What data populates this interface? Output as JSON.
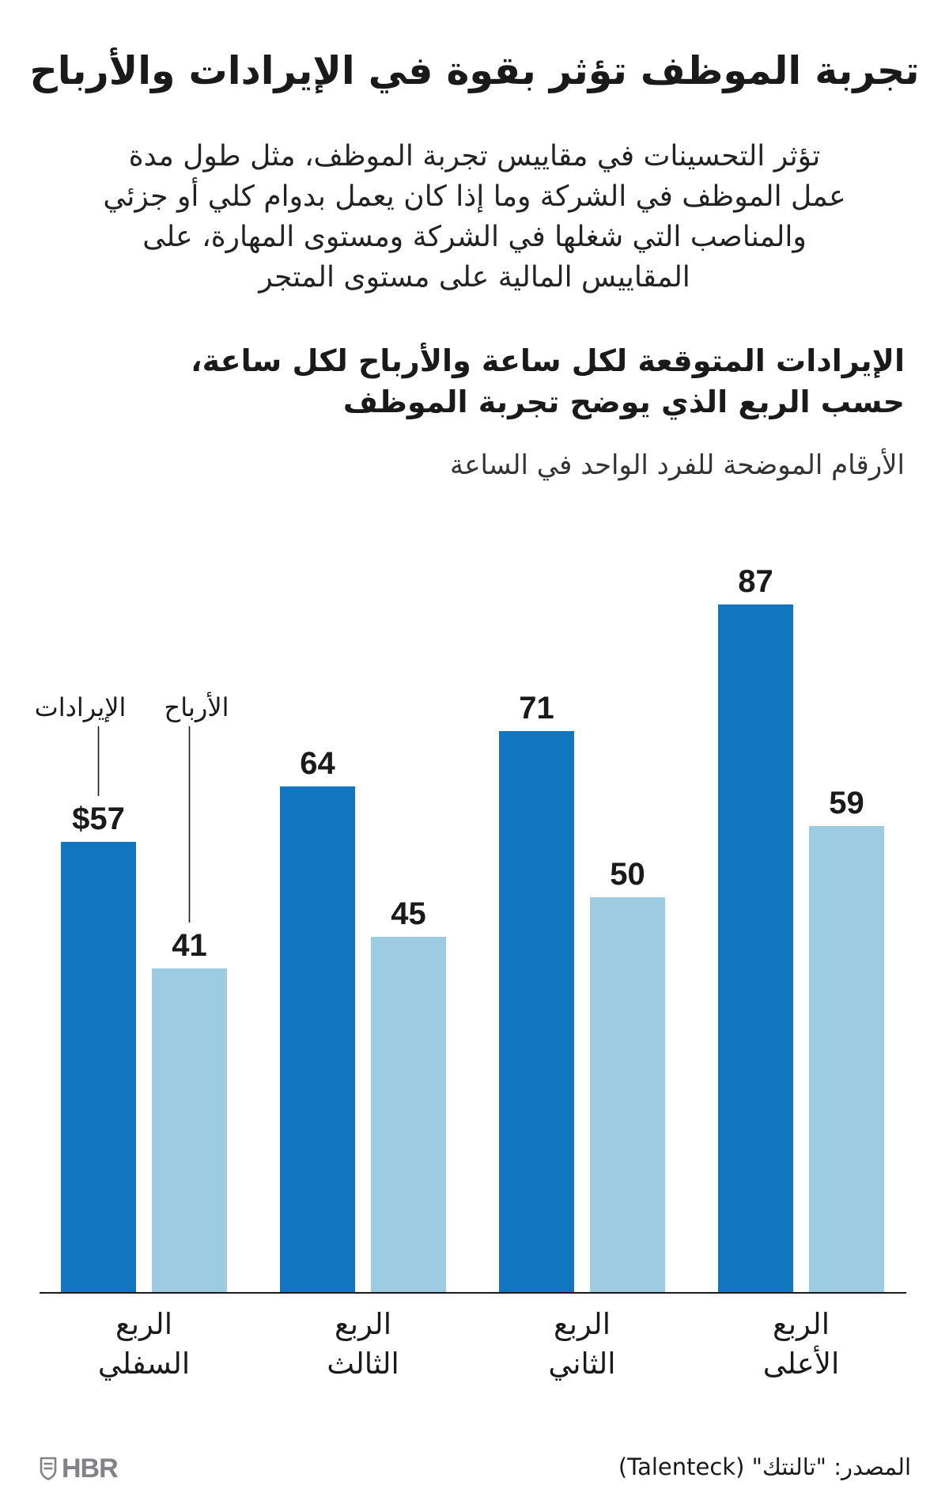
{
  "page": {
    "title": "تجربة الموظف تؤثر بقوة في الإيرادات والأرباح",
    "description_lines": [
      "تؤثر التحسينات في مقاييس تجربة الموظف، مثل طول مدة",
      "عمل الموظف في الشركة وما إذا كان يعمل بدوام كلي أو جزئي",
      "والمناصب التي شغلها في الشركة ومستوى المهارة، على",
      "المقاييس المالية على مستوى المتجر"
    ],
    "source": "المصدر: \"تالنتك\" (Talenteck)"
  },
  "logo": {
    "text": "HBR",
    "icon": "shield-icon"
  },
  "colors": {
    "text": "#1a1a1a",
    "axis": "#1a1a1a",
    "logo": "#808285",
    "revenue": "#1176bf",
    "profit": "#9dcbe2"
  },
  "chart_data": {
    "type": "bar",
    "title_lines": [
      "الإيرادات المتوقعة لكل ساعة والأرباح لكل ساعة،",
      "حسب الربع الذي يوضح تجربة الموظف"
    ],
    "subtitle": "الأرقام الموضحة للفرد الواحد في الساعة",
    "categories": [
      [
        "الربع",
        "السفلي"
      ],
      [
        "الربع",
        "الثالث"
      ],
      [
        "الربع",
        "الثاني"
      ],
      [
        "الربع",
        "الأعلى"
      ]
    ],
    "series": [
      {
        "name": "الإيرادات",
        "values": [
          57,
          64,
          71,
          87
        ],
        "labels": [
          "$57",
          "64",
          "71",
          "87"
        ],
        "color": "#1176bf"
      },
      {
        "name": "الأرباح",
        "values": [
          41,
          45,
          50,
          59
        ],
        "labels": [
          "41",
          "45",
          "50",
          "59"
        ],
        "color": "#9dcbe2"
      }
    ],
    "xlabel": "",
    "ylabel": "",
    "ylim": [
      0,
      90
    ],
    "grid": false,
    "legend": "top-left"
  }
}
